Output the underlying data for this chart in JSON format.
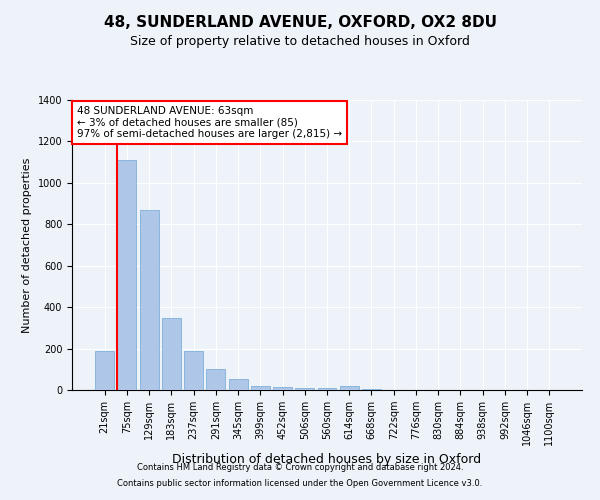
{
  "title": "48, SUNDERLAND AVENUE, OXFORD, OX2 8DU",
  "subtitle": "Size of property relative to detached houses in Oxford",
  "xlabel": "Distribution of detached houses by size in Oxford",
  "ylabel": "Number of detached properties",
  "categories": [
    "21sqm",
    "75sqm",
    "129sqm",
    "183sqm",
    "237sqm",
    "291sqm",
    "345sqm",
    "399sqm",
    "452sqm",
    "506sqm",
    "560sqm",
    "614sqm",
    "668sqm",
    "722sqm",
    "776sqm",
    "830sqm",
    "884sqm",
    "938sqm",
    "992sqm",
    "1046sqm",
    "1100sqm"
  ],
  "values": [
    190,
    1110,
    870,
    350,
    190,
    100,
    55,
    20,
    15,
    10,
    8,
    20,
    5,
    0,
    0,
    0,
    0,
    0,
    0,
    0,
    0
  ],
  "bar_color": "#aec6e8",
  "bar_edge_color": "#6fa8d6",
  "annotation_line1": "48 SUNDERLAND AVENUE: 63sqm",
  "annotation_line2": "← 3% of detached houses are smaller (85)",
  "annotation_line3": "97% of semi-detached houses are larger (2,815) →",
  "footnote1": "Contains HM Land Registry data © Crown copyright and database right 2024.",
  "footnote2": "Contains public sector information licensed under the Open Government Licence v3.0.",
  "ylim": [
    0,
    1400
  ],
  "background_color": "#eef3fa",
  "grid_color": "#ffffff",
  "title_fontsize": 11,
  "subtitle_fontsize": 9,
  "ylabel_fontsize": 8,
  "xlabel_fontsize": 9,
  "tick_fontsize": 7,
  "annotation_fontsize": 7.5,
  "footnote_fontsize": 6,
  "red_line_x": 0.57
}
